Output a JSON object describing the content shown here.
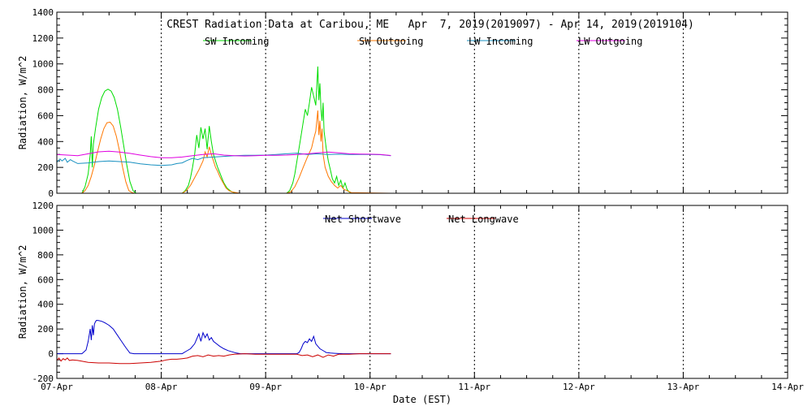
{
  "chart_data": [
    {
      "type": "line",
      "title": "CREST Radiation Data at Caribou, ME   Apr  7, 2019(2019097) - Apr 14, 2019(2019104)",
      "ylabel": "Radiation, W/m^2",
      "xlabel": "",
      "xlim": [
        0,
        7
      ],
      "ylim": [
        0,
        1400
      ],
      "yticks": [
        0,
        200,
        400,
        600,
        800,
        1000,
        1200,
        1400
      ],
      "grid": true,
      "legend_position": "top",
      "series": [
        {
          "name": "SW Incoming",
          "color": "#00dd00",
          "x": [
            0.24,
            0.27,
            0.3,
            0.32,
            0.33,
            0.34,
            0.35,
            0.37,
            0.4,
            0.43,
            0.46,
            0.49,
            0.52,
            0.55,
            0.58,
            0.61,
            0.64,
            0.67,
            0.7,
            0.73,
            0.76,
            0.8,
            0.99,
            1.2,
            1.23,
            1.26,
            1.28,
            1.3,
            1.32,
            1.34,
            1.36,
            1.38,
            1.4,
            1.42,
            1.44,
            1.46,
            1.48,
            1.5,
            1.52,
            1.54,
            1.56,
            1.58,
            1.6,
            1.63,
            1.66,
            1.68,
            1.7,
            1.72,
            1.75,
            2.2,
            2.23,
            2.26,
            2.28,
            2.3,
            2.32,
            2.34,
            2.36,
            2.38,
            2.4,
            2.42,
            2.44,
            2.46,
            2.48,
            2.5,
            2.51,
            2.52,
            2.53,
            2.54,
            2.55,
            2.56,
            2.58,
            2.6,
            2.62,
            2.64,
            2.66,
            2.68,
            2.7,
            2.72,
            2.74,
            2.76,
            2.78,
            2.8,
            2.82,
            3.2
          ],
          "y": [
            0,
            50,
            150,
            300,
            440,
            200,
            380,
            500,
            650,
            740,
            790,
            805,
            790,
            740,
            650,
            520,
            370,
            220,
            90,
            20,
            0,
            0,
            0,
            0,
            20,
            60,
            120,
            200,
            300,
            450,
            350,
            510,
            420,
            500,
            340,
            520,
            400,
            300,
            250,
            200,
            160,
            120,
            80,
            40,
            20,
            10,
            5,
            0,
            0,
            0,
            20,
            80,
            150,
            250,
            350,
            450,
            550,
            650,
            600,
            700,
            820,
            750,
            680,
            980,
            720,
            850,
            650,
            560,
            700,
            480,
            350,
            250,
            180,
            110,
            80,
            130,
            60,
            100,
            40,
            80,
            30,
            10,
            0,
            0
          ]
        },
        {
          "name": "SW Outgoing",
          "color": "#ff7700",
          "x": [
            0.24,
            0.27,
            0.3,
            0.33,
            0.36,
            0.39,
            0.42,
            0.45,
            0.48,
            0.51,
            0.54,
            0.57,
            0.6,
            0.63,
            0.66,
            0.69,
            0.72,
            0.75,
            0.8,
            0.99,
            1.2,
            1.24,
            1.28,
            1.32,
            1.36,
            1.4,
            1.42,
            1.44,
            1.46,
            1.48,
            1.5,
            1.52,
            1.54,
            1.56,
            1.58,
            1.6,
            1.62,
            1.65,
            1.68,
            1.72,
            1.75,
            2.2,
            2.24,
            2.28,
            2.32,
            2.36,
            2.4,
            2.44,
            2.46,
            2.48,
            2.5,
            2.51,
            2.52,
            2.53,
            2.54,
            2.55,
            2.57,
            2.6,
            2.63,
            2.66,
            2.69,
            2.72,
            2.75,
            2.78,
            2.82,
            3.2
          ],
          "y": [
            0,
            20,
            60,
            130,
            220,
            320,
            420,
            500,
            545,
            550,
            520,
            440,
            330,
            200,
            90,
            20,
            5,
            0,
            0,
            0,
            0,
            20,
            60,
            120,
            180,
            250,
            320,
            280,
            360,
            300,
            250,
            200,
            170,
            130,
            100,
            70,
            40,
            20,
            10,
            5,
            0,
            0,
            10,
            50,
            120,
            200,
            280,
            350,
            420,
            480,
            640,
            450,
            560,
            400,
            500,
            300,
            200,
            130,
            90,
            60,
            40,
            60,
            30,
            20,
            5,
            0
          ]
        },
        {
          "name": "LW Incoming",
          "color": "#1890c0",
          "x": [
            0,
            0.03,
            0.05,
            0.08,
            0.1,
            0.13,
            0.15,
            0.2,
            0.3,
            0.4,
            0.5,
            0.6,
            0.7,
            0.8,
            0.9,
            1.0,
            1.1,
            1.15,
            1.2,
            1.25,
            1.3,
            1.35,
            1.4,
            1.5,
            1.6,
            1.7,
            1.8,
            1.9,
            2.0,
            2.1,
            2.2,
            2.3,
            2.4,
            2.5,
            2.6,
            2.7,
            2.8,
            2.9,
            3.0,
            3.1,
            3.2
          ],
          "y": [
            240,
            265,
            250,
            270,
            240,
            260,
            250,
            230,
            235,
            245,
            250,
            245,
            240,
            228,
            220,
            215,
            220,
            230,
            235,
            255,
            270,
            260,
            275,
            280,
            285,
            290,
            293,
            293,
            295,
            300,
            305,
            310,
            300,
            305,
            300,
            302,
            300,
            300,
            300,
            298,
            290
          ]
        },
        {
          "name": "LW Outgoing",
          "color": "#e000e0",
          "x": [
            0,
            0.1,
            0.2,
            0.3,
            0.4,
            0.5,
            0.6,
            0.7,
            0.8,
            0.9,
            1.0,
            1.1,
            1.2,
            1.3,
            1.4,
            1.5,
            1.6,
            1.7,
            1.8,
            1.9,
            2.0,
            2.1,
            2.2,
            2.3,
            2.4,
            2.5,
            2.6,
            2.7,
            2.8,
            2.9,
            3.0,
            3.1,
            3.2
          ],
          "y": [
            300,
            295,
            290,
            305,
            320,
            325,
            318,
            308,
            295,
            283,
            275,
            275,
            280,
            290,
            300,
            305,
            295,
            290,
            288,
            290,
            293,
            293,
            295,
            300,
            305,
            312,
            318,
            312,
            305,
            303,
            302,
            300,
            292
          ]
        }
      ]
    },
    {
      "type": "line",
      "title": "",
      "ylabel": "Radiation, W/m^2",
      "xlabel": "Date (EST)",
      "xlim": [
        0,
        7
      ],
      "ylim": [
        -200,
        1200
      ],
      "yticks": [
        -200,
        0,
        200,
        400,
        600,
        800,
        1000,
        1200
      ],
      "x_tick_labels": [
        "07-Apr",
        "08-Apr",
        "09-Apr",
        "10-Apr",
        "11-Apr",
        "12-Apr",
        "13-Apr",
        "14-Apr"
      ],
      "grid": true,
      "legend_position": "top",
      "series": [
        {
          "name": "Net Shortwave",
          "color": "#0000cc",
          "x": [
            0,
            0.24,
            0.28,
            0.3,
            0.32,
            0.33,
            0.34,
            0.35,
            0.36,
            0.37,
            0.38,
            0.4,
            0.43,
            0.46,
            0.5,
            0.54,
            0.58,
            0.62,
            0.66,
            0.7,
            0.74,
            0.78,
            0.99,
            1.2,
            1.24,
            1.28,
            1.32,
            1.34,
            1.36,
            1.38,
            1.4,
            1.42,
            1.44,
            1.46,
            1.48,
            1.5,
            1.53,
            1.56,
            1.6,
            1.64,
            1.68,
            1.72,
            1.76,
            2.2,
            2.26,
            2.3,
            2.32,
            2.34,
            2.36,
            2.38,
            2.4,
            2.42,
            2.44,
            2.46,
            2.48,
            2.5,
            2.52,
            2.54,
            2.56,
            2.58,
            2.62,
            2.66,
            2.7,
            2.74,
            3.2
          ],
          "y": [
            0,
            0,
            30,
            100,
            200,
            110,
            230,
            150,
            240,
            260,
            270,
            268,
            262,
            250,
            230,
            200,
            150,
            100,
            50,
            5,
            0,
            0,
            0,
            0,
            20,
            40,
            80,
            120,
            160,
            100,
            170,
            130,
            160,
            110,
            130,
            100,
            80,
            60,
            40,
            25,
            15,
            5,
            0,
            0,
            0,
            0,
            10,
            40,
            80,
            100,
            90,
            120,
            100,
            140,
            80,
            60,
            40,
            30,
            20,
            10,
            5,
            3,
            1,
            0,
            0
          ]
        },
        {
          "name": "Net Longwave",
          "color": "#cc0000",
          "x": [
            0,
            0.02,
            0.04,
            0.06,
            0.08,
            0.1,
            0.12,
            0.15,
            0.2,
            0.3,
            0.4,
            0.5,
            0.6,
            0.7,
            0.8,
            0.9,
            1.0,
            1.05,
            1.1,
            1.15,
            1.2,
            1.25,
            1.3,
            1.35,
            1.4,
            1.45,
            1.5,
            1.55,
            1.6,
            1.65,
            1.7,
            1.8,
            1.9,
            2.0,
            2.1,
            2.2,
            2.3,
            2.35,
            2.4,
            2.45,
            2.5,
            2.55,
            2.6,
            2.65,
            2.7,
            2.8,
            2.9,
            3.0,
            3.1,
            3.2
          ],
          "y": [
            -55,
            -35,
            -60,
            -40,
            -50,
            -35,
            -55,
            -50,
            -55,
            -70,
            -75,
            -75,
            -80,
            -80,
            -75,
            -70,
            -60,
            -50,
            -45,
            -45,
            -40,
            -35,
            -20,
            -15,
            -25,
            -10,
            -20,
            -15,
            -20,
            -10,
            -5,
            0,
            -5,
            -5,
            -5,
            -5,
            -5,
            -15,
            -10,
            -25,
            -10,
            -30,
            -10,
            -20,
            -5,
            -5,
            0,
            0,
            0,
            0
          ]
        }
      ]
    }
  ]
}
